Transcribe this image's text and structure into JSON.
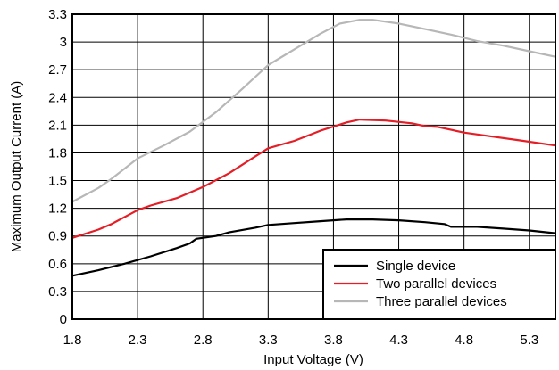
{
  "chart_data": {
    "type": "line",
    "title": "",
    "xlabel": "Input Voltage (V)",
    "ylabel": "Maximum Output Current (A)",
    "xlim": [
      1.8,
      5.5
    ],
    "ylim": [
      0,
      3.3
    ],
    "xticks": [
      "1.8",
      "2.3",
      "2.8",
      "3.3",
      "3.8",
      "4.3",
      "4.8",
      "5.3"
    ],
    "yticks": [
      "0",
      "0.3",
      "0.6",
      "0.9",
      "1.2",
      "1.5",
      "1.8",
      "2.1",
      "2.4",
      "2.7",
      "3",
      "3.3"
    ],
    "grid": true,
    "legend_position": "bottom-right",
    "series": [
      {
        "name": "Single device",
        "color": "#000000",
        "points": [
          [
            1.8,
            0.47
          ],
          [
            2.0,
            0.53
          ],
          [
            2.2,
            0.6
          ],
          [
            2.4,
            0.68
          ],
          [
            2.6,
            0.77
          ],
          [
            2.7,
            0.82
          ],
          [
            2.75,
            0.87
          ],
          [
            2.9,
            0.9
          ],
          [
            3.0,
            0.94
          ],
          [
            3.2,
            0.99
          ],
          [
            3.3,
            1.02
          ],
          [
            3.5,
            1.04
          ],
          [
            3.7,
            1.06
          ],
          [
            3.9,
            1.08
          ],
          [
            4.1,
            1.08
          ],
          [
            4.3,
            1.07
          ],
          [
            4.5,
            1.05
          ],
          [
            4.65,
            1.03
          ],
          [
            4.7,
            1.0
          ],
          [
            4.9,
            1.0
          ],
          [
            5.1,
            0.98
          ],
          [
            5.3,
            0.96
          ],
          [
            5.5,
            0.93
          ]
        ]
      },
      {
        "name": "Two parallel devices",
        "color": "#e41e26",
        "points": [
          [
            1.8,
            0.88
          ],
          [
            2.0,
            0.97
          ],
          [
            2.1,
            1.03
          ],
          [
            2.3,
            1.18
          ],
          [
            2.4,
            1.23
          ],
          [
            2.6,
            1.31
          ],
          [
            2.8,
            1.43
          ],
          [
            3.0,
            1.58
          ],
          [
            3.2,
            1.76
          ],
          [
            3.3,
            1.85
          ],
          [
            3.5,
            1.93
          ],
          [
            3.7,
            2.04
          ],
          [
            3.9,
            2.13
          ],
          [
            4.0,
            2.16
          ],
          [
            4.2,
            2.15
          ],
          [
            4.4,
            2.12
          ],
          [
            4.5,
            2.09
          ],
          [
            4.6,
            2.08
          ],
          [
            4.8,
            2.02
          ],
          [
            5.0,
            1.98
          ],
          [
            5.2,
            1.94
          ],
          [
            5.5,
            1.88
          ]
        ]
      },
      {
        "name": "Three parallel devices",
        "color": "#b7b7b7",
        "points": [
          [
            1.8,
            1.27
          ],
          [
            2.0,
            1.42
          ],
          [
            2.1,
            1.52
          ],
          [
            2.3,
            1.74
          ],
          [
            2.5,
            1.88
          ],
          [
            2.7,
            2.03
          ],
          [
            2.9,
            2.24
          ],
          [
            3.1,
            2.49
          ],
          [
            3.3,
            2.75
          ],
          [
            3.5,
            2.92
          ],
          [
            3.7,
            3.09
          ],
          [
            3.85,
            3.2
          ],
          [
            4.0,
            3.24
          ],
          [
            4.1,
            3.24
          ],
          [
            4.3,
            3.2
          ],
          [
            4.5,
            3.14
          ],
          [
            4.7,
            3.08
          ],
          [
            4.9,
            3.01
          ],
          [
            5.1,
            2.96
          ],
          [
            5.3,
            2.9
          ],
          [
            5.5,
            2.84
          ]
        ]
      }
    ]
  }
}
